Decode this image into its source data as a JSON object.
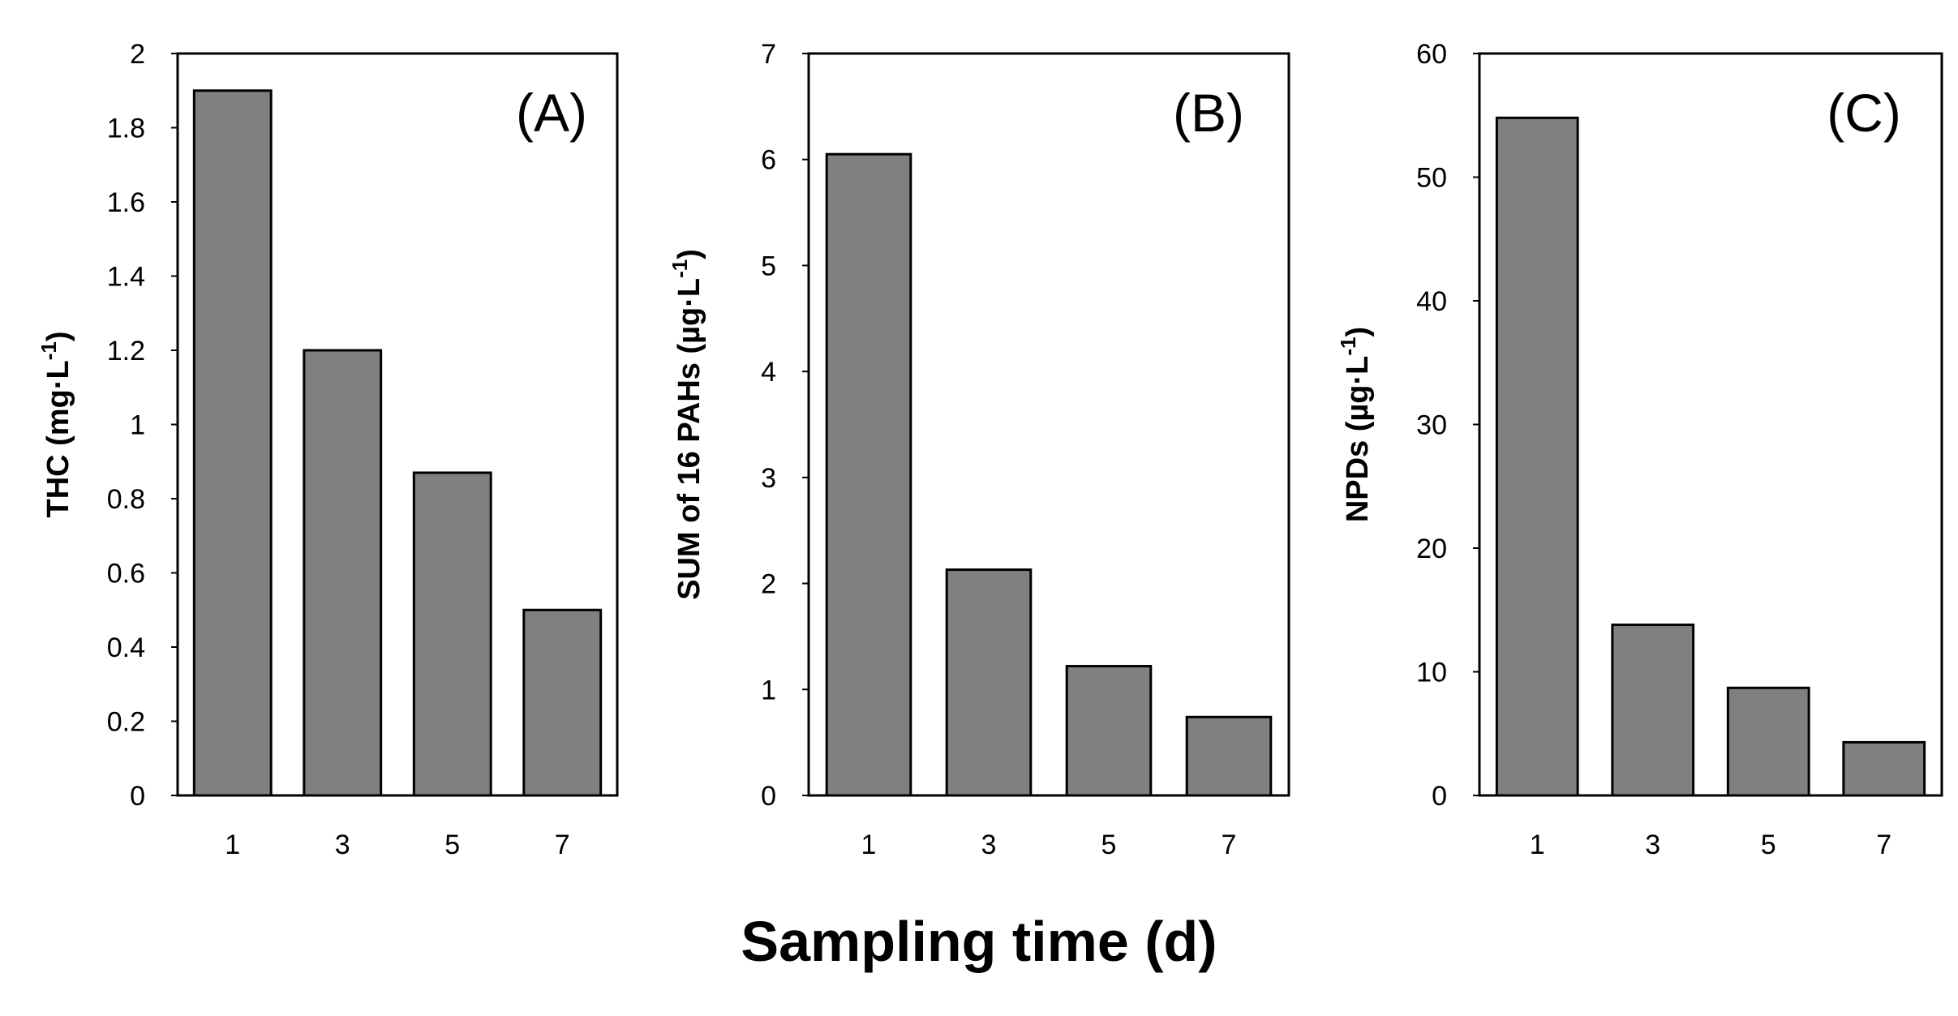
{
  "figure": {
    "xlabel": "Sampling time  (d)"
  },
  "chart_data": [
    {
      "type": "bar",
      "panel_label": "(A)",
      "title": "",
      "categories": [
        "1",
        "3",
        "5",
        "7"
      ],
      "values": [
        1.9,
        1.2,
        0.87,
        0.5
      ],
      "ylabel_main": "THC (mg·L",
      "ylabel_sup": "-1",
      "ylabel_close": ")",
      "xlabel": "Sampling time  (d)",
      "ylim": [
        0,
        2
      ],
      "yticks": [
        0,
        0.2,
        0.4,
        0.6,
        0.8,
        1,
        1.2,
        1.4,
        1.6,
        1.8,
        2
      ],
      "ytick_labels": [
        "0",
        "0.2",
        "0.4",
        "0.6",
        "0.8",
        "1",
        "1.2",
        "1.4",
        "1.6",
        "1.8",
        "2"
      ],
      "bar_color": "#808080",
      "grid": false
    },
    {
      "type": "bar",
      "panel_label": "(B)",
      "title": "",
      "categories": [
        "1",
        "3",
        "5",
        "7"
      ],
      "values": [
        6.05,
        2.13,
        1.22,
        0.74
      ],
      "ylabel_main": "SUM of 16 PAHs (µg·L",
      "ylabel_sup": "-1",
      "ylabel_close": ")",
      "xlabel": "Sampling time  (d)",
      "ylim": [
        0,
        7
      ],
      "yticks": [
        0,
        1,
        2,
        3,
        4,
        5,
        6,
        7
      ],
      "ytick_labels": [
        "0",
        "1",
        "2",
        "3",
        "4",
        "5",
        "6",
        "7"
      ],
      "bar_color": "#808080",
      "grid": false
    },
    {
      "type": "bar",
      "panel_label": "(C)",
      "title": "",
      "categories": [
        "1",
        "3",
        "5",
        "7"
      ],
      "values": [
        54.8,
        13.8,
        8.7,
        4.3
      ],
      "ylabel_main": "NPDs (µg·L",
      "ylabel_sup": "-1",
      "ylabel_close": ")",
      "xlabel": "Sampling time  (d)",
      "ylim": [
        0,
        60
      ],
      "yticks": [
        0,
        10,
        20,
        30,
        40,
        50,
        60
      ],
      "ytick_labels": [
        "0",
        "10",
        "20",
        "30",
        "40",
        "50",
        "60"
      ],
      "bar_color": "#808080",
      "grid": false
    }
  ]
}
